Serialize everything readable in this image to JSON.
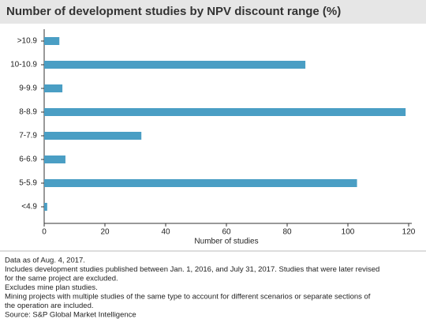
{
  "chart_data": {
    "type": "hbar",
    "title": "Number of development studies by NPV discount range (%)",
    "x_label": "Number of studies",
    "categories": [
      ">10.9",
      "10-10.9",
      "9-9.9",
      "8-8.9",
      "7-7.9",
      "6-6.9",
      "5-5.9",
      "<4.9"
    ],
    "values": [
      5,
      86,
      6,
      119,
      32,
      7,
      103,
      1
    ],
    "color": "#4a9ec4",
    "xlim": [
      0,
      120
    ],
    "xticks": [
      0,
      20,
      40,
      60,
      80,
      100,
      120
    ],
    "notes": [
      "Data as of Aug. 4, 2017.",
      "Includes development studies published between Jan. 1, 2016, and July 31, 2017. Studies that were later revised",
      "for the same project are excluded.",
      "Excludes mine plan studies.",
      "Mining projects with multiple studies of the same type to account for different scenarios or separate sections of",
      "the operation are included.",
      "Source: S&P Global Market Intelligence"
    ]
  }
}
